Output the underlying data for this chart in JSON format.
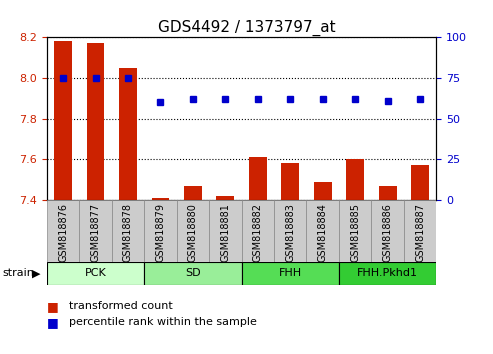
{
  "title": "GDS4492 / 1373797_at",
  "samples": [
    "GSM818876",
    "GSM818877",
    "GSM818878",
    "GSM818879",
    "GSM818880",
    "GSM818881",
    "GSM818882",
    "GSM818883",
    "GSM818884",
    "GSM818885",
    "GSM818886",
    "GSM818887"
  ],
  "red_values": [
    8.18,
    8.17,
    8.05,
    7.41,
    7.47,
    7.42,
    7.61,
    7.58,
    7.49,
    7.6,
    7.47,
    7.57
  ],
  "blue_values": [
    75,
    75,
    75,
    60,
    62,
    62,
    62,
    62,
    62,
    62,
    61,
    62
  ],
  "ylim_left": [
    7.4,
    8.2
  ],
  "ylim_right": [
    0,
    100
  ],
  "yticks_left": [
    7.4,
    7.6,
    7.8,
    8.0,
    8.2
  ],
  "yticks_right": [
    0,
    25,
    50,
    75,
    100
  ],
  "groups": [
    {
      "label": "PCK",
      "start": 0,
      "end": 3,
      "color": "#ccffcc"
    },
    {
      "label": "SD",
      "start": 3,
      "end": 6,
      "color": "#99ee99"
    },
    {
      "label": "FHH",
      "start": 6,
      "end": 9,
      "color": "#55dd55"
    },
    {
      "label": "FHH.Pkhd1",
      "start": 9,
      "end": 12,
      "color": "#33cc33"
    }
  ],
  "red_color": "#cc2200",
  "blue_color": "#0000cc",
  "bar_width": 0.55,
  "grid_color": "#000000",
  "bg_color": "#ffffff",
  "tick_label_color_left": "#cc2200",
  "tick_label_color_right": "#0000cc",
  "strain_label": "strain",
  "legend_red": "transformed count",
  "legend_blue": "percentile rank within the sample",
  "xtick_bg": "#cccccc",
  "xtick_edge": "#888888"
}
